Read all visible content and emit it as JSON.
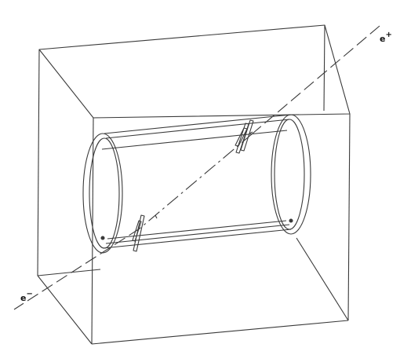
{
  "labels": {
    "beam_positron": "e",
    "beam_positron_sign": "+",
    "beam_electron": "e",
    "beam_electron_sign": "−"
  },
  "colors": {
    "line": "#3a3a3a",
    "background": "#ffffff"
  }
}
